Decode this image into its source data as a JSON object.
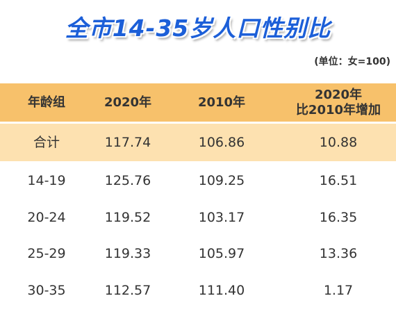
{
  "title": "全市14-35岁人口性别比",
  "unit": "(单位：女=100)",
  "table": {
    "header": [
      "年龄组",
      "2020年",
      "2010年",
      [
        "2020年",
        "比2010年增加"
      ]
    ],
    "rows": [
      [
        "合计",
        "117.74",
        "106.86",
        "10.88"
      ],
      [
        "14-19",
        "125.76",
        "109.25",
        "16.51"
      ],
      [
        "20-24",
        "119.52",
        "103.17",
        "16.35"
      ],
      [
        "25-29",
        "119.33",
        "105.97",
        "13.36"
      ],
      [
        "30-35",
        "112.57",
        "111.40",
        "1.17"
      ]
    ]
  }
}
